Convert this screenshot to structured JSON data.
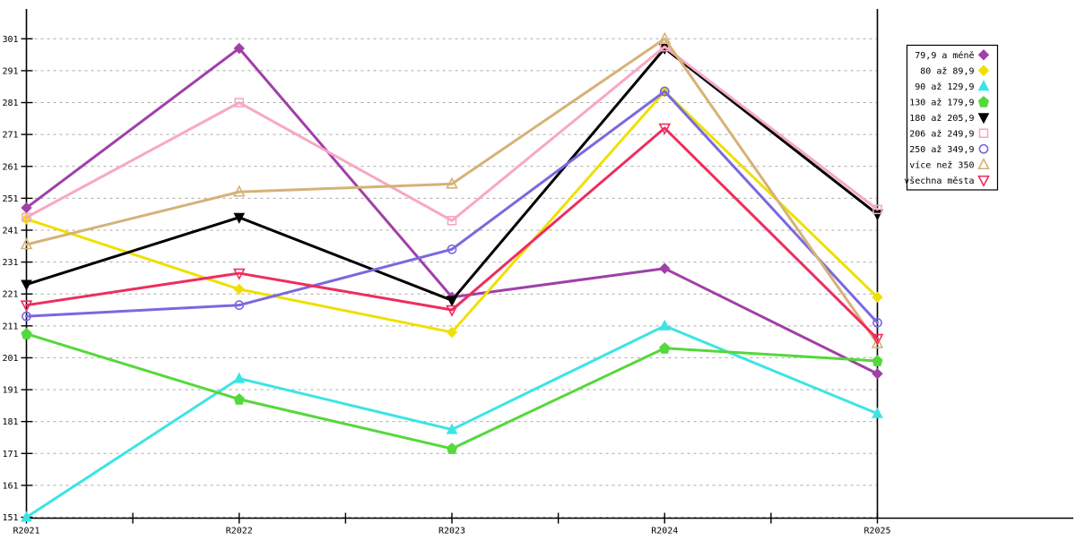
{
  "chart_data": {
    "type": "line",
    "title": "",
    "xlabel": "",
    "ylabel": "",
    "x_categories": [
      "R2021",
      "R2022",
      "R2023",
      "R2024",
      "R2025"
    ],
    "yticks": [
      151,
      161,
      171,
      181,
      191,
      201,
      211,
      221,
      231,
      241,
      251,
      261,
      271,
      281,
      291,
      301
    ],
    "ylim": [
      150,
      310
    ],
    "grid": true,
    "grid_style": "dashed-gray",
    "legend_position": "right-outside",
    "axis_color": "#000000",
    "grid_color": "#a9a9a9",
    "series": [
      {
        "name": "79,9 a méně",
        "color": "#a040a8",
        "marker": "diamond-filled",
        "values": [
          248,
          298,
          220,
          229,
          196
        ]
      },
      {
        "name": "80 až 89,9",
        "color": "#efe000",
        "marker": "diamond-filled",
        "values": [
          244.5,
          222.5,
          209,
          284.5,
          220
        ]
      },
      {
        "name": "90 až 129,9",
        "color": "#3ce4e4",
        "marker": "triangle-up-filled",
        "values": [
          151,
          194.5,
          178.5,
          211,
          183.5
        ]
      },
      {
        "name": "130 až 179,9",
        "color": "#55d83c",
        "marker": "pentagon-filled",
        "values": [
          208.5,
          188,
          172.5,
          204,
          200
        ]
      },
      {
        "name": "180 až 205,9",
        "color": "#000000",
        "marker": "triangle-down-filled",
        "values": [
          224,
          245,
          219,
          298,
          246
        ]
      },
      {
        "name": "206 až 249,9",
        "color": "#f7a8c4",
        "marker": "square-open",
        "values": [
          245,
          281,
          244,
          298.5,
          247.5
        ]
      },
      {
        "name": "250 až 349,9",
        "color": "#7b68e0",
        "marker": "circle-open",
        "values": [
          214,
          217.5,
          235,
          284.5,
          212
        ]
      },
      {
        "name": "více než 350",
        "color": "#d6b277",
        "marker": "triangle-up-open",
        "values": [
          236.5,
          253,
          255.5,
          301,
          205.5
        ]
      },
      {
        "name": "všechna města",
        "color": "#ee2d5e",
        "marker": "triangle-down-open",
        "values": [
          217.5,
          227.5,
          216,
          273,
          207
        ]
      }
    ]
  }
}
